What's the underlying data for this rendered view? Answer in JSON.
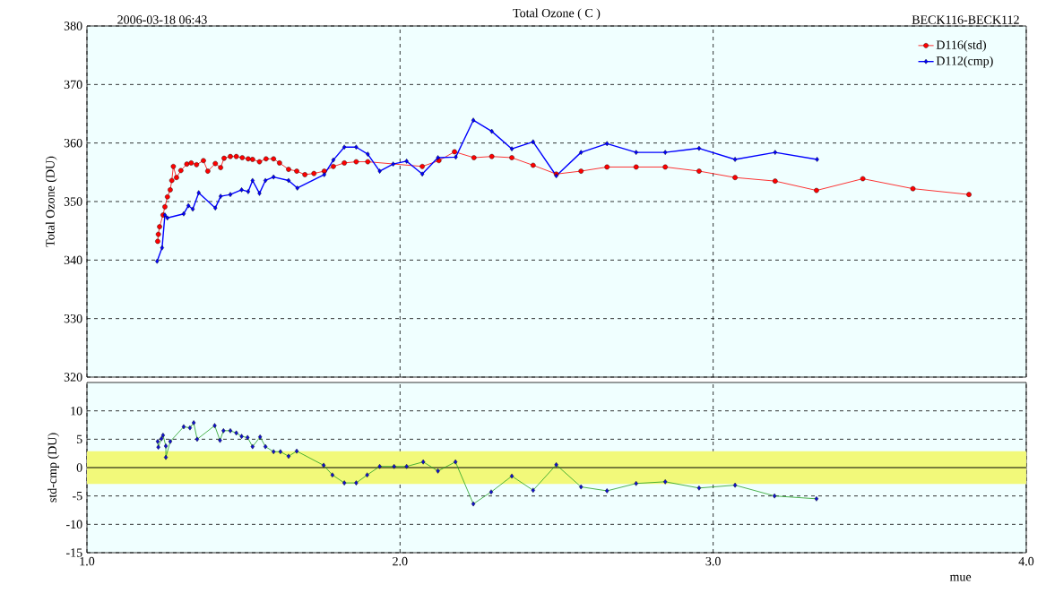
{
  "chart_data": [
    {
      "type": "line",
      "title": "Total Ozone ( C )",
      "ylabel": "Total Ozone (DU)",
      "annotations": [
        "2006-03-18  06:43",
        "BECK116-BECK112"
      ],
      "xlim": [
        1,
        4
      ],
      "xticks": [
        1,
        2,
        3,
        4
      ],
      "ylim": [
        320,
        380
      ],
      "yticks": [
        320,
        330,
        340,
        350,
        360,
        370,
        380
      ],
      "grid": true,
      "legend": "top right",
      "tick_labels": "y",
      "series": [
        {
          "name": "D116(std)",
          "color": "#ff0000",
          "marker": "circle",
          "x": [
            1.226,
            1.228,
            1.232,
            1.243,
            1.249,
            1.257,
            1.266,
            1.271,
            1.276,
            1.286,
            1.3,
            1.319,
            1.333,
            1.35,
            1.372,
            1.386,
            1.41,
            1.427,
            1.438,
            1.458,
            1.477,
            1.496,
            1.515,
            1.529,
            1.551,
            1.572,
            1.596,
            1.615,
            1.644,
            1.67,
            1.696,
            1.725,
            1.758,
            1.787,
            1.822,
            1.86,
            1.897,
            2.071,
            2.124,
            2.174,
            2.236,
            2.293,
            2.357,
            2.425,
            2.499,
            2.578,
            2.661,
            2.754,
            2.847,
            2.955,
            3.07,
            3.198,
            3.33,
            3.478,
            3.638,
            3.817
          ],
          "values": [
            343.2,
            344.4,
            345.7,
            347.7,
            349.1,
            350.8,
            352.0,
            353.6,
            356.0,
            354.1,
            355.3,
            356.4,
            356.6,
            356.3,
            357.0,
            355.2,
            356.5,
            355.8,
            357.4,
            357.7,
            357.7,
            357.5,
            357.3,
            357.2,
            356.8,
            357.3,
            357.3,
            356.6,
            355.5,
            355.2,
            354.6,
            354.8,
            355.2,
            356.0,
            356.6,
            356.8,
            356.8,
            356.0,
            357.0,
            358.5,
            357.5,
            357.7,
            357.5,
            356.2,
            354.7,
            355.2,
            355.9,
            355.9,
            355.9,
            355.2,
            354.1,
            353.5,
            351.9,
            353.9,
            352.2,
            351.2
          ]
        },
        {
          "name": "D112(cmp)",
          "color": "#0000ff",
          "marker": "diamond",
          "x": [
            1.224,
            1.24,
            1.249,
            1.257,
            1.309,
            1.324,
            1.338,
            1.357,
            1.41,
            1.427,
            1.458,
            1.494,
            1.515,
            1.529,
            1.551,
            1.57,
            1.596,
            1.644,
            1.672,
            1.758,
            1.787,
            1.822,
            1.86,
            1.897,
            1.935,
            1.978,
            2.021,
            2.071,
            2.121,
            2.178,
            2.234,
            2.293,
            2.357,
            2.425,
            2.499,
            2.578,
            2.661,
            2.754,
            2.847,
            2.955,
            3.07,
            3.198,
            3.332
          ],
          "values": [
            339.8,
            342.1,
            347.7,
            347.2,
            347.9,
            349.3,
            348.7,
            351.5,
            348.9,
            350.9,
            351.2,
            352.0,
            351.7,
            353.6,
            351.4,
            353.6,
            354.2,
            353.6,
            352.3,
            354.6,
            357.1,
            359.3,
            359.3,
            358.1,
            355.2,
            356.4,
            356.9,
            354.7,
            357.5,
            357.6,
            363.9,
            362.0,
            359.0,
            360.2,
            354.4,
            358.4,
            359.9,
            358.4,
            358.4,
            359.1,
            357.2,
            358.4,
            357.2
          ]
        }
      ]
    },
    {
      "type": "line",
      "xlabel": "mue",
      "ylabel": "std-cmp (DU)",
      "xlim": [
        1,
        4
      ],
      "xticks": [
        {
          "value": 1,
          "label": "1.0"
        },
        {
          "value": 2,
          "label": "2.0"
        },
        {
          "value": 3,
          "label": "3.0"
        },
        {
          "value": 4,
          "label": "4.0"
        }
      ],
      "ylim": [
        -15,
        15
      ],
      "yticks": [
        -15,
        -10,
        -5,
        0,
        5,
        10
      ],
      "grid": true,
      "bands": [
        {
          "axis": "y",
          "from": -2.9,
          "to": 2.9,
          "color": "#f2f97a"
        }
      ],
      "ref_lines": [
        {
          "axis": "y",
          "value": 0,
          "color": "#000000"
        }
      ],
      "series": [
        {
          "color": "#22a022",
          "marker": "diamond",
          "x": [
            1.226,
            1.228,
            1.238,
            1.243,
            1.252,
            1.252,
            1.266,
            1.309,
            1.329,
            1.341,
            1.352,
            1.408,
            1.425,
            1.436,
            1.458,
            1.477,
            1.494,
            1.513,
            1.529,
            1.553,
            1.57,
            1.596,
            1.618,
            1.644,
            1.67,
            1.756,
            1.784,
            1.822,
            1.86,
            1.895,
            1.935,
            1.981,
            2.021,
            2.074,
            2.121,
            2.177,
            2.234,
            2.291,
            2.357,
            2.425,
            2.499,
            2.578,
            2.661,
            2.754,
            2.847,
            2.955,
            3.07,
            3.196,
            3.33
          ],
          "values": [
            4.6,
            3.6,
            5.1,
            5.7,
            3.8,
            1.8,
            4.6,
            7.2,
            7.0,
            7.9,
            5.0,
            7.4,
            4.8,
            6.5,
            6.5,
            6.1,
            5.5,
            5.3,
            3.7,
            5.4,
            3.7,
            2.8,
            2.8,
            2.0,
            2.9,
            0.4,
            -1.3,
            -2.7,
            -2.7,
            -1.3,
            0.2,
            0.2,
            0.2,
            1.0,
            -0.6,
            1.0,
            -6.4,
            -4.3,
            -1.5,
            -4.0,
            0.5,
            -3.4,
            -4.1,
            -2.8,
            -2.5,
            -3.6,
            -3.1,
            -5.0,
            -5.5
          ]
        }
      ]
    }
  ]
}
